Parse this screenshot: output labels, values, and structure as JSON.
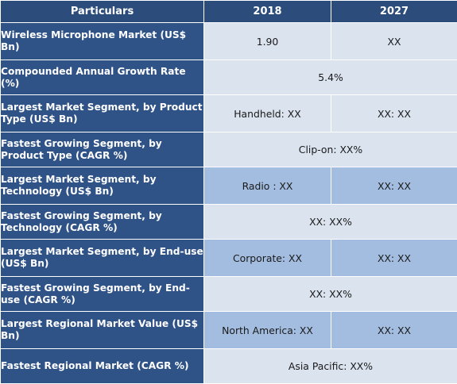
{
  "header": {
    "col1": "Particulars",
    "col2": "2018",
    "col3": "2027"
  },
  "rows": [
    {
      "label": "Wireless Microphone Market (US$ Bn)",
      "v2018": "1.90",
      "v2027": "XX"
    },
    {
      "label": "Compounded Annual Growth Rate (%)",
      "merged": "5.4%"
    },
    {
      "label": "Largest Market Segment, by Product Type (US$ Bn)",
      "v2018": "Handheld: XX",
      "v2027": "XX: XX"
    },
    {
      "label": "Fastest Growing Segment, by Product Type (CAGR %)",
      "merged": "Clip-on: XX%"
    },
    {
      "label": "Largest Market Segment, by Technology (US$ Bn)",
      "v2018": "Radio : XX",
      "v2027": "XX: XX"
    },
    {
      "label": "Fastest Growing Segment, by Technology (CAGR %)",
      "merged": "XX: XX%"
    },
    {
      "label": "Largest Market Segment, by End-use (US$ Bn)",
      "v2018": "Corporate: XX",
      "v2027": "XX: XX"
    },
    {
      "label": "Fastest Growing Segment, by End-use (CAGR %)",
      "merged": "XX: XX%"
    },
    {
      "label": "Largest Regional Market Value (US$ Bn)",
      "v2018": "North America: XX",
      "v2027": "XX: XX"
    },
    {
      "label": "Fastest Regional Market (CAGR %)",
      "merged": "Asia Pacific: XX%"
    }
  ],
  "colors": {
    "header": "#2c4c7c",
    "label": "#2f5287",
    "light_cell": "#dbe3ef",
    "mid_cell": "#a3bde0"
  }
}
